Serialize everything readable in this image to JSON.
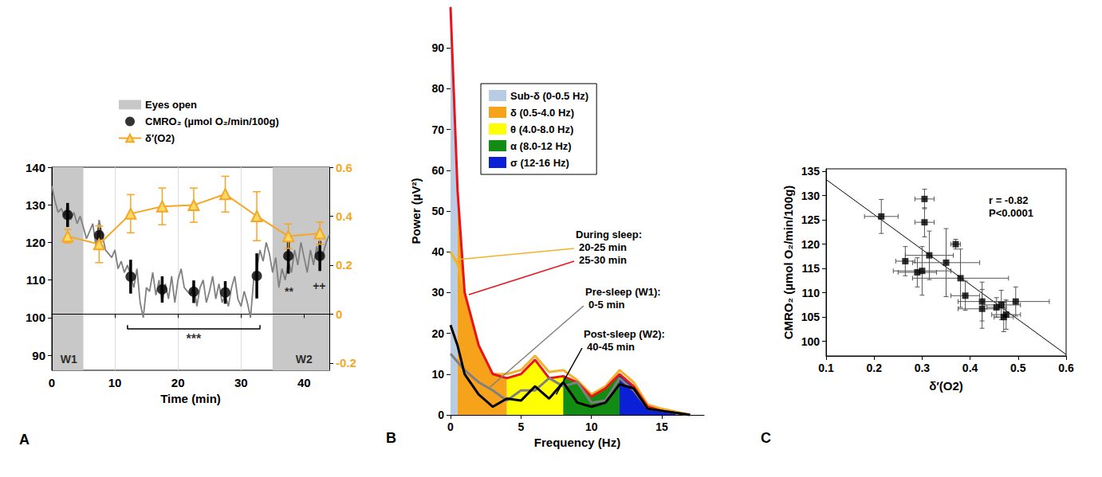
{
  "chart_data": [
    {
      "type": "line",
      "panel_label": "A",
      "x_label": "Time (min)",
      "xlim": [
        0,
        44
      ],
      "xticks": [
        0,
        10,
        20,
        30,
        40
      ],
      "ylim": [
        86,
        140
      ],
      "yticks": [
        90,
        100,
        110,
        120,
        130,
        140
      ],
      "y2lim": [
        -0.23,
        0.6
      ],
      "y2ticks": [
        -0.2,
        0,
        0.2,
        0.4,
        0.6
      ],
      "grid": "x",
      "shaded": {
        "name": "Eyes open",
        "color": "#c8c8c8",
        "ranges": [
          [
            0,
            5
          ],
          [
            35,
            44
          ]
        ]
      },
      "x": [
        2.5,
        7.5,
        12.5,
        17.5,
        22.5,
        27.5,
        32.5,
        37.5,
        42.5
      ],
      "series": [
        {
          "name": "CMRO₂ (µmol O₂/min/100g)",
          "type": "scatter",
          "color": "#000000",
          "marker": "circle",
          "values": [
            127.3,
            121.9,
            110.9,
            107.5,
            106.9,
            106.7,
            111.1,
            116.4,
            116.4
          ],
          "errors": [
            3.2,
            2,
            4.5,
            3.5,
            3,
            3,
            6,
            4.7,
            4
          ]
        },
        {
          "name": "δ′(O2)",
          "type": "line",
          "axis": "y2",
          "color": "#f5a623",
          "marker": "triangle",
          "values": [
            0.318,
            0.285,
            0.41,
            0.44,
            0.445,
            0.49,
            0.4,
            0.318,
            0.33
          ],
          "errors": [
            0.028,
            0.075,
            0.078,
            0.075,
            0.07,
            0.073,
            0.1,
            0.05,
            0.045
          ]
        }
      ],
      "trace": {
        "color": "#808080",
        "x": [
          0,
          0.5,
          1,
          1.5,
          2,
          2.5,
          3,
          3.5,
          4,
          4.5,
          5,
          5.5,
          6,
          6.5,
          7,
          7.5,
          8,
          8.5,
          9,
          9.5,
          10,
          10.5,
          11,
          11.5,
          12,
          12.5,
          13,
          13.5,
          14,
          14.5,
          15,
          15.5,
          16,
          16.5,
          17,
          17.5,
          18,
          18.5,
          19,
          19.5,
          20,
          20.5,
          21,
          21.5,
          22,
          22.5,
          23,
          23.5,
          24,
          24.5,
          25,
          25.5,
          26,
          26.5,
          27,
          27.5,
          28,
          28.5,
          29,
          29.5,
          30,
          30.5,
          31,
          31.5,
          32,
          32.5,
          33,
          33.5,
          34,
          34.5,
          35,
          35.5,
          36,
          36.5,
          37,
          37.5,
          38,
          38.5,
          39,
          39.5,
          40,
          40.5,
          41,
          41.5,
          42,
          42.5,
          43,
          43.5,
          44
        ],
        "values": [
          135,
          131,
          128,
          129,
          127,
          130,
          126,
          128,
          125,
          127,
          124,
          121,
          123,
          125,
          119,
          126,
          122,
          118,
          117,
          116,
          118,
          113,
          115,
          112,
          114,
          111,
          108,
          113,
          104,
          100,
          108,
          107,
          112,
          106,
          110,
          104,
          109,
          105,
          111,
          104,
          110,
          113,
          108,
          107,
          106,
          109,
          103,
          108,
          110,
          104,
          107,
          111,
          105,
          109,
          104,
          106,
          103,
          108,
          111,
          105,
          103,
          107,
          104,
          100,
          110,
          113,
          118,
          115,
          120,
          117,
          112,
          116,
          108,
          113,
          110,
          115,
          112,
          118,
          114,
          120,
          116,
          112,
          118,
          114,
          119,
          115,
          117,
          120,
          122
        ]
      },
      "bracket": {
        "x": [
          12,
          33
        ],
        "y": 97,
        "text": "***"
      },
      "annotations": [
        {
          "text": "**",
          "x": 37.6,
          "y": 106.9
        },
        {
          "text": "++",
          "x": 42.4,
          "y": 108.4
        },
        {
          "text": "W1",
          "x": 2.7,
          "y": 89
        },
        {
          "text": "W2",
          "x": 40,
          "y": 89
        }
      ]
    },
    {
      "type": "area",
      "panel_label": "B",
      "x_label": "Frequency (Hz)",
      "y_label": "Power (µV²)",
      "xlim": [
        0,
        18
      ],
      "xticks": [
        0,
        5,
        10,
        15
      ],
      "ylim": [
        0,
        100
      ],
      "yticks": [
        0,
        10,
        20,
        30,
        40,
        50,
        60,
        70,
        80,
        90
      ],
      "x": [
        0,
        0.5,
        1,
        2,
        3,
        4,
        5,
        6,
        7,
        8,
        9,
        10,
        11,
        12,
        13,
        14,
        15,
        16,
        17
      ],
      "series": [
        {
          "name": "20-25 min",
          "color": "#f2b32a",
          "values": [
            40,
            37,
            30,
            17,
            10,
            10,
            11,
            14.5,
            10.5,
            11,
            8.5,
            5,
            7,
            11,
            8,
            2.5,
            1.5,
            0.8,
            0
          ]
        },
        {
          "name": "25-30 min",
          "color": "#e8141c",
          "values": [
            100,
            55,
            30,
            17,
            10,
            9,
            10,
            13.5,
            9,
            9.5,
            8,
            4.5,
            6.5,
            10,
            7,
            2,
            1,
            0.5,
            0
          ]
        },
        {
          "name": "0-5 min",
          "color": "#808080",
          "values": [
            15,
            13,
            11,
            8,
            6,
            3.5,
            6,
            6,
            9,
            7,
            8,
            3,
            3.5,
            9,
            6,
            1.5,
            1,
            0.5,
            0
          ]
        },
        {
          "name": "40-45 min",
          "color": "#000000",
          "values": [
            22,
            17,
            10,
            5,
            2,
            4,
            3.5,
            7,
            4,
            8,
            3,
            2,
            3,
            7.5,
            6.5,
            1.5,
            1,
            0.5,
            0
          ]
        }
      ],
      "fill_series": "25-30 min",
      "bands": [
        {
          "name": "Sub-δ (0-0.5 Hz)",
          "range": [
            0,
            0.5
          ],
          "color": "#b8cce4"
        },
        {
          "name": "δ (0.5-4.0 Hz)",
          "range": [
            0.5,
            4
          ],
          "color": "#f7a21b"
        },
        {
          "name": "θ (4.0-8.0 Hz)",
          "range": [
            4,
            8
          ],
          "color": "#ffff00"
        },
        {
          "name": "α (8.0-12 Hz)",
          "range": [
            8,
            12
          ],
          "color": "#128c12"
        },
        {
          "name": "σ (12-16 Hz)",
          "range": [
            12,
            16
          ],
          "color": "#0a1fd6"
        }
      ],
      "annotations": [
        {
          "title": "During sleep:",
          "series": [
            "20-25 min",
            "25-30 min"
          ]
        },
        {
          "title": "Pre-sleep (W1):",
          "series": [
            "0-5 min"
          ]
        },
        {
          "title": "Post-sleep (W2):",
          "series": [
            "40-45 min"
          ]
        }
      ]
    },
    {
      "type": "scatter",
      "panel_label": "C",
      "x_label": "δ′(O2)",
      "y_label": "CMRO₂ (µmol O₂/min/100g)",
      "xlim": [
        0.1,
        0.6
      ],
      "xticks": [
        0.1,
        0.2,
        0.3,
        0.4,
        0.5,
        0.6
      ],
      "ylim": [
        97,
        135.5
      ],
      "yticks": [
        100,
        105,
        110,
        115,
        120,
        125,
        130,
        135
      ],
      "color": "#000000",
      "marker": "square",
      "points": {
        "x": [
          0.215,
          0.265,
          0.29,
          0.3,
          0.305,
          0.305,
          0.315,
          0.35,
          0.37,
          0.38,
          0.39,
          0.425,
          0.425,
          0.455,
          0.465,
          0.47,
          0.475,
          0.495
        ],
        "values": [
          125.7,
          116.5,
          114.2,
          114.5,
          129.3,
          124.5,
          117.7,
          116.2,
          120,
          113,
          109.4,
          108.2,
          106.7,
          107,
          107.5,
          105,
          105.5,
          108.2
        ],
        "x_errors": [
          0.035,
          0.02,
          0.04,
          0.06,
          0.02,
          0.02,
          0.05,
          0.07,
          0.01,
          0.1,
          0.03,
          0.05,
          0.05,
          0.02,
          0.04,
          0.02,
          0.03,
          0.07
        ],
        "y_errors": [
          3.5,
          3,
          3,
          5,
          2,
          3,
          5,
          7,
          1,
          6,
          3,
          4,
          4,
          2,
          3,
          3,
          3,
          3
        ]
      },
      "fit": {
        "slope": -72,
        "intercept": 140.5
      },
      "annotation": [
        "r = -0.82",
        "P<0.0001"
      ]
    }
  ]
}
